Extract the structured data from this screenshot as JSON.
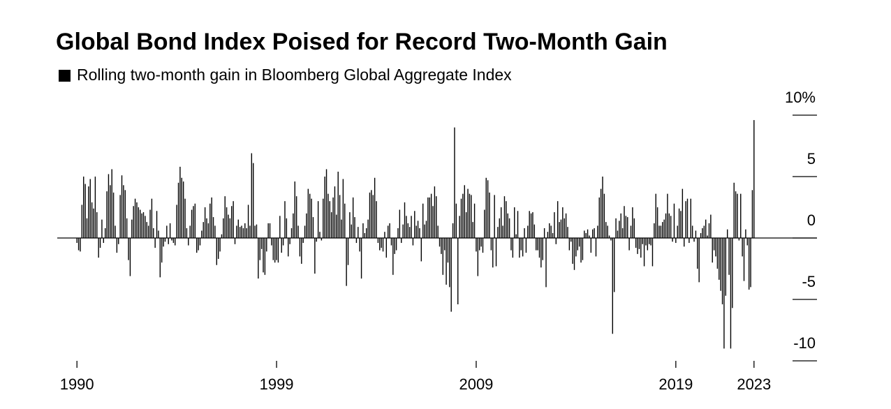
{
  "chart_data": {
    "type": "bar",
    "title": "Global Bond Index Poised for Record Two-Month Gain",
    "categories": [
      "1990",
      null,
      null,
      null,
      null,
      null,
      null,
      null,
      null,
      null,
      null,
      null,
      null,
      null,
      null,
      null,
      null,
      null,
      null,
      null,
      null,
      null,
      null,
      null,
      null,
      null,
      null,
      null,
      null,
      null,
      null,
      null,
      null,
      null,
      null,
      null,
      null,
      null,
      null,
      null,
      null,
      null,
      null,
      null,
      null,
      null,
      null,
      null,
      null,
      null,
      null,
      null,
      null,
      null,
      null,
      null,
      null,
      null,
      null,
      null,
      null,
      null,
      null,
      null,
      null,
      null,
      null,
      null,
      null,
      null,
      null,
      null,
      null,
      null,
      null,
      null,
      null,
      null,
      null,
      null,
      null,
      null,
      null,
      null,
      null,
      null,
      null,
      null,
      null,
      null,
      null,
      null,
      null,
      null,
      null,
      null,
      null,
      null,
      null,
      null,
      null,
      null,
      null,
      null,
      null,
      null,
      null,
      null,
      null,
      null,
      null,
      null,
      null,
      null,
      null,
      null,
      null,
      null,
      null,
      null,
      "1999",
      null,
      null,
      null,
      null,
      null,
      null,
      null,
      null,
      null,
      null,
      null,
      null,
      null,
      null,
      null,
      null,
      null,
      null,
      null,
      null,
      null,
      null,
      null,
      null,
      null,
      null,
      null,
      null,
      null,
      null,
      null,
      null,
      null,
      null,
      null,
      null,
      null,
      null,
      null,
      null,
      null,
      null,
      null,
      null,
      null,
      null,
      null,
      null,
      null,
      null,
      null,
      null,
      null,
      null,
      null,
      null,
      null,
      null,
      null,
      null,
      null,
      null,
      null,
      null,
      null,
      null,
      null,
      null,
      null,
      null,
      null,
      null,
      null,
      null,
      null,
      null,
      null,
      null,
      null,
      null,
      null,
      null,
      null,
      null,
      null,
      null,
      null,
      null,
      null,
      null,
      null,
      null,
      null,
      null,
      null,
      null,
      null,
      null,
      null,
      null,
      null,
      null,
      null,
      null,
      null,
      null,
      null,
      null,
      null,
      null,
      null,
      null,
      null,
      null,
      null,
      null,
      null,
      null,
      null,
      "2009",
      null,
      null,
      null,
      null,
      null,
      null,
      null,
      null,
      null,
      null,
      null,
      null,
      null,
      null,
      null,
      null,
      null,
      null,
      null,
      null,
      null,
      null,
      null,
      null,
      null,
      null,
      null,
      null,
      null,
      null,
      null,
      null,
      null,
      null,
      null,
      null,
      null,
      null,
      null,
      null,
      null,
      null,
      null,
      null,
      null,
      null,
      null,
      null,
      null,
      null,
      null,
      null,
      null,
      null,
      null,
      null,
      null,
      null,
      null,
      null,
      null,
      null,
      null,
      null,
      null,
      null,
      null,
      null,
      null,
      null,
      null,
      null,
      null,
      null,
      null,
      null,
      null,
      null,
      null,
      null,
      null,
      null,
      null,
      null,
      null,
      null,
      null,
      null,
      null,
      null,
      null,
      null,
      null,
      null,
      null,
      null,
      null,
      null,
      null,
      null,
      null,
      null,
      null,
      null,
      null,
      null,
      null,
      null,
      null,
      null,
      null,
      null,
      null,
      null,
      null,
      null,
      null,
      null,
      null,
      "2019",
      null,
      null,
      null,
      null,
      null,
      null,
      null,
      null,
      null,
      null,
      null,
      null,
      null,
      null,
      null,
      null,
      null,
      null,
      null,
      null,
      null,
      null,
      null,
      null,
      null,
      null,
      null,
      null,
      null,
      null,
      null,
      null,
      null,
      null,
      null,
      null,
      null,
      null,
      null,
      null,
      null,
      null,
      null,
      null,
      null,
      null,
      "2023"
    ],
    "series": [
      {
        "name": "Rolling two-month gain in Bloomberg Global Aggregate Index",
        "color": "#000000",
        "values": [
          -0.4,
          -1.0,
          -1.1,
          2.7,
          5.0,
          4.4,
          1.6,
          4.2,
          4.8,
          2.9,
          2.4,
          5.0,
          2.1,
          -1.6,
          -0.8,
          1.5,
          -0.4,
          0.8,
          3.8,
          5.2,
          4.3,
          5.6,
          3.7,
          1.0,
          -1.2,
          -0.5,
          3.5,
          5.1,
          4.3,
          3.9,
          1.6,
          -1.8,
          -3.1,
          1.5,
          2.6,
          3.2,
          2.9,
          2.5,
          2.3,
          2.0,
          2.1,
          1.8,
          1.3,
          1.0,
          2.3,
          3.2,
          0.8,
          -0.8,
          2.2,
          0.6,
          -3.2,
          -2.0,
          -0.7,
          -0.3,
          1.0,
          -0.5,
          1.2,
          -0.2,
          -0.4,
          -0.6,
          2.7,
          4.5,
          5.8,
          4.9,
          4.6,
          3.2,
          0.8,
          -0.6,
          1.0,
          2.3,
          2.6,
          2.8,
          -1.2,
          -1.0,
          -0.6,
          0.6,
          1.3,
          2.5,
          1.6,
          1.2,
          2.8,
          3.3,
          1.7,
          1.0,
          -2.2,
          -1.7,
          -1.1,
          0.3,
          1.6,
          3.4,
          2.5,
          1.9,
          1.6,
          2.6,
          3.0,
          -0.5,
          1.0,
          1.5,
          0.9,
          1.0,
          0.8,
          1.2,
          0.8,
          2.7,
          1.0,
          6.9,
          6.1,
          1.0,
          1.1,
          -3.3,
          -1.8,
          -0.9,
          -2.8,
          -3.0,
          -1.1,
          1.2,
          1.2,
          -0.6,
          -1.8,
          -2.0,
          -1.8,
          -2.0,
          1.8,
          -1.2,
          -0.6,
          3.0,
          1.6,
          -1.5,
          -0.5,
          0.8,
          2.0,
          4.6,
          3.4,
          1.0,
          -1.5,
          -2.1,
          -0.4,
          1.0,
          2.0,
          4.0,
          3.6,
          3.2,
          1.7,
          -2.9,
          -0.3,
          3.0,
          0.5,
          -0.2,
          3.2,
          5.0,
          5.6,
          3.6,
          3.0,
          2.1,
          3.3,
          4.2,
          1.9,
          5.4,
          3.5,
          1.5,
          4.8,
          2.8,
          -3.9,
          -2.2,
          2.1,
          1.1,
          3.3,
          1.7,
          -0.4,
          0.9,
          -1.1,
          -3.3,
          1.2,
          0.4,
          0.8,
          1.5,
          3.7,
          3.9,
          3.5,
          4.9,
          3.0,
          -0.4,
          -1.0,
          -0.8,
          -1.1,
          0.5,
          -1.6,
          1.0,
          1.2,
          -0.6,
          -3.0,
          -1.3,
          -1.0,
          0.8,
          2.3,
          -0.4,
          1.1,
          2.9,
          1.8,
          1.2,
          0.9,
          1.8,
          -0.6,
          2.2,
          1.0,
          1.4,
          0.8,
          -1.9,
          2.8,
          1.1,
          1.4,
          3.3,
          3.3,
          3.6,
          2.6,
          4.2,
          3.4,
          1.0,
          -0.7,
          -1.3,
          -3.0,
          -1.0,
          -3.8,
          -2.0,
          -4.0,
          -6.0,
          1.2,
          9.0,
          2.8,
          -5.4,
          1.8,
          3.2,
          3.6,
          4.3,
          2.1,
          4.0,
          3.6,
          3.5,
          1.3,
          2.8,
          -1.1,
          -3.1,
          -1.0,
          -0.7,
          -1.2,
          2.3,
          4.9,
          4.7,
          3.7,
          -1.0,
          -2.4,
          3.5,
          -2.3,
          0.9,
          1.6,
          2.5,
          1.0,
          3.4,
          3.0,
          2.0,
          1.6,
          -1.0,
          -1.6,
          2.5,
          0.3,
          2.2,
          -1.6,
          -1.0,
          -1.5,
          0.8,
          -1.2,
          1.0,
          2.2,
          2.0,
          2.1,
          1.1,
          -1.0,
          -1.0,
          -1.6,
          -2.4,
          -1.8,
          0.8,
          -4.0,
          0.5,
          1.2,
          1.0,
          0.4,
          2.1,
          -0.5,
          3.0,
          1.3,
          1.5,
          2.5,
          1.6,
          2.0,
          0.9,
          -1.0,
          -0.3,
          -2.1,
          -2.6,
          -1.5,
          -1.0,
          -0.7,
          -2.0,
          -1.8,
          0.6,
          0.4,
          0.7,
          0.2,
          -1.2,
          0.7,
          0.8,
          -1.5,
          1.0,
          3.3,
          4.0,
          5.0,
          3.6,
          1.3,
          1.0,
          0.2,
          -0.2,
          -7.8,
          -4.4,
          1.6,
          0.6,
          1.4,
          2.0,
          0.8,
          2.6,
          1.8,
          1.7,
          -1.0,
          1.0,
          2.5,
          1.6,
          -0.8,
          -1.3,
          -0.9,
          -1.6,
          -0.5,
          -2.3,
          -0.6,
          -1.0,
          -0.5,
          -0.6,
          -2.3,
          1.2,
          3.6,
          2.5,
          1.0,
          1.0,
          1.3,
          1.5,
          2.0,
          3.6,
          2.0,
          1.8,
          -0.3,
          2.8,
          -0.4,
          1.0,
          2.4,
          2.2,
          4.0,
          -0.7,
          3.0,
          3.2,
          -0.4,
          3.2,
          1.0,
          -0.3,
          0.6,
          -2.5,
          -3.6,
          0.4,
          0.8,
          1.0,
          1.5,
          0.2,
          1.2,
          1.9,
          -2.0,
          -1.0,
          -1.5,
          -2.5,
          -3.4,
          -4.3,
          -5.4,
          -9.0,
          -4.7,
          0.7,
          -3.0,
          -9.0,
          -5.7,
          4.5,
          3.8,
          3.6,
          -0.2,
          3.6,
          -1.5,
          -3.5,
          0.7,
          -0.6,
          -4.2,
          -4.0,
          3.9,
          9.6
        ]
      }
    ],
    "ylim": [
      -10,
      10
    ],
    "yticks": [
      {
        "value": 10,
        "label": "10%"
      },
      5,
      0,
      -5,
      -10
    ]
  }
}
